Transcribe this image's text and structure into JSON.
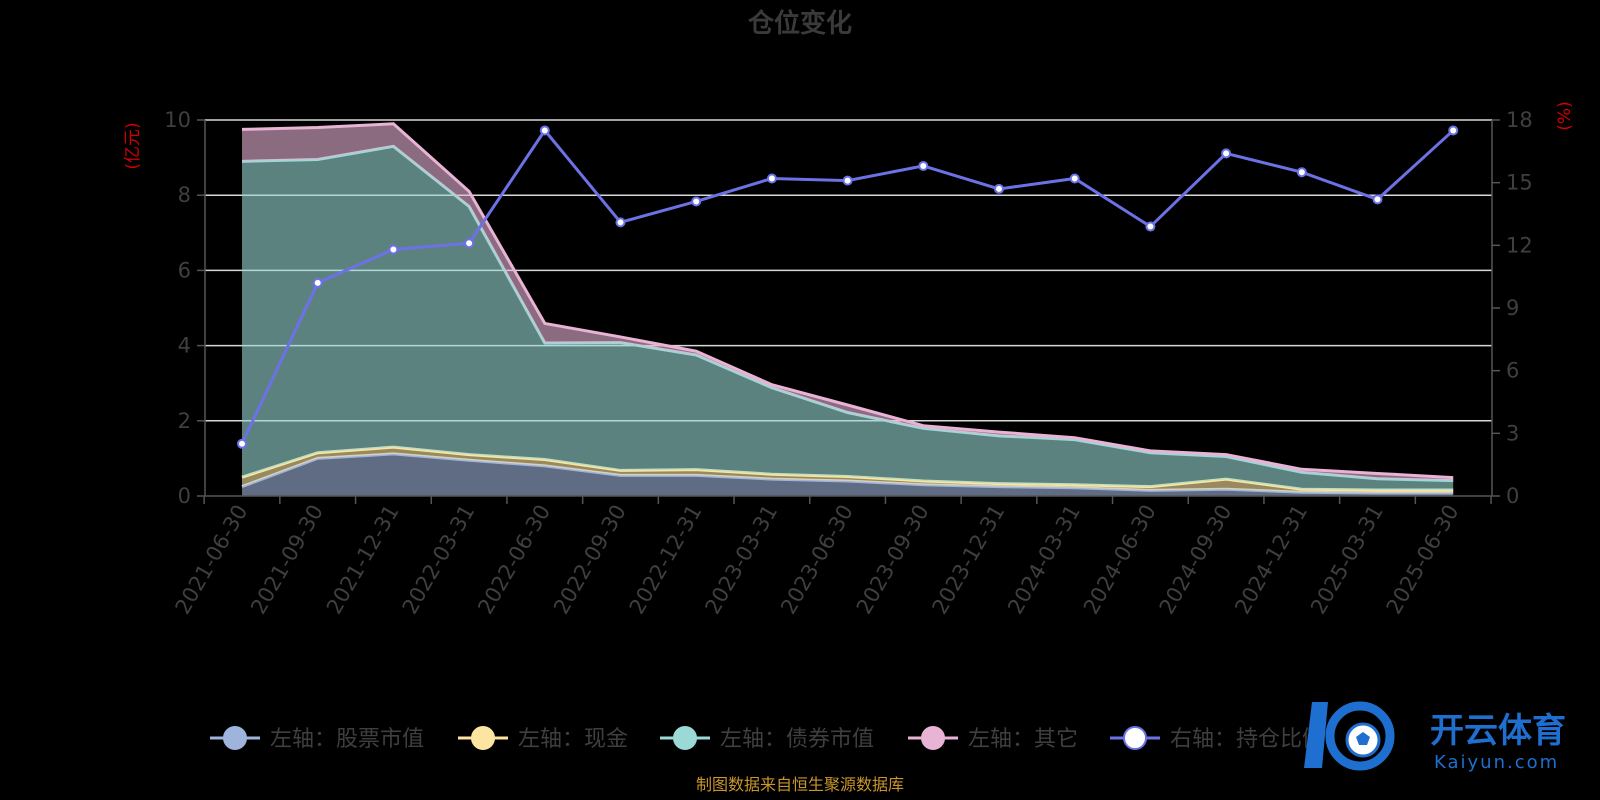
{
  "chart_data": {
    "type": "area",
    "title": "仓位变化",
    "left_unit": "(亿元)",
    "right_unit": "(%)",
    "categories": [
      "2021-06-30",
      "2021-09-30",
      "2021-12-31",
      "2022-03-31",
      "2022-06-30",
      "2022-09-30",
      "2022-12-31",
      "2023-03-31",
      "2023-06-30",
      "2023-09-30",
      "2023-12-31",
      "2024-03-31",
      "2024-06-30",
      "2024-09-30",
      "2024-12-31",
      "2025-03-31",
      "2025-06-30"
    ],
    "left_axis": {
      "min": 0,
      "max": 10,
      "ticks": [
        0,
        2,
        4,
        6,
        8,
        10
      ]
    },
    "right_axis": {
      "min": 0,
      "max": 18,
      "ticks": [
        0,
        3,
        6,
        9,
        12,
        15,
        18
      ]
    },
    "grid": true,
    "legend_position": "bottom",
    "stacked_series": [
      {
        "name": "左轴：股票市值",
        "color": "#9fb4dc",
        "values": [
          0.25,
          1.0,
          1.12,
          0.95,
          0.8,
          0.55,
          0.55,
          0.45,
          0.4,
          0.3,
          0.25,
          0.22,
          0.15,
          0.18,
          0.1,
          0.08,
          0.08
        ]
      },
      {
        "name": "左轴：现金",
        "color": "#fbe5a0",
        "values": [
          0.25,
          0.15,
          0.18,
          0.15,
          0.17,
          0.13,
          0.15,
          0.13,
          0.12,
          0.1,
          0.08,
          0.08,
          0.1,
          0.27,
          0.08,
          0.08,
          0.08
        ]
      },
      {
        "name": "左轴：债券市值",
        "color": "#9ad9d5",
        "values": [
          8.4,
          7.8,
          8.0,
          6.6,
          3.1,
          3.4,
          3.05,
          2.3,
          1.7,
          1.4,
          1.27,
          1.2,
          0.9,
          0.6,
          0.45,
          0.3,
          0.25
        ]
      },
      {
        "name": "左轴：其它",
        "color": "#e8b3d4",
        "values": [
          0.85,
          0.85,
          0.6,
          0.4,
          0.52,
          0.15,
          0.1,
          0.08,
          0.2,
          0.07,
          0.1,
          0.05,
          0.05,
          0.05,
          0.08,
          0.14,
          0.08
        ]
      }
    ],
    "line_series": {
      "name": "右轴：持仓比例",
      "color": "#6c72e6",
      "values": [
        2.5,
        10.2,
        11.8,
        12.1,
        17.5,
        13.1,
        14.1,
        15.2,
        15.1,
        15.8,
        14.7,
        15.2,
        12.9,
        16.4,
        15.5,
        14.2,
        17.5
      ]
    }
  },
  "footer": {
    "source": "制图数据来自恒生聚源数据库"
  },
  "watermark": {
    "text": "开云体育",
    "sub": "Kaiyun.com"
  }
}
